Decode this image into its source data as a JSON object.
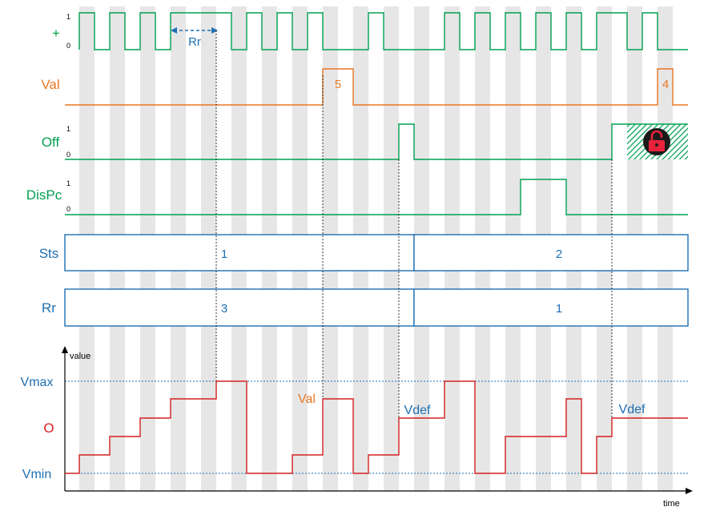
{
  "colors": {
    "green": "#00A050",
    "orange": "#E87722",
    "blue": "#1F6FB2",
    "red": "#D42020",
    "stripe": "#E6E6E6",
    "black": "#000000"
  },
  "signals": {
    "plus": {
      "label": "+",
      "hi": "1",
      "lo": "0"
    },
    "val": {
      "label": "Val",
      "pulse1": "5",
      "pulse2": "4"
    },
    "off": {
      "label": "Off",
      "hi": "1",
      "lo": "0",
      "icon": "lock-icon"
    },
    "dispc": {
      "label": "DisPc",
      "hi": "1",
      "lo": "0"
    }
  },
  "buses": {
    "sts": {
      "label": "Sts",
      "values": [
        "1",
        "2"
      ]
    },
    "rr": {
      "label": "Rr",
      "values": [
        "3",
        "1"
      ]
    }
  },
  "rr_arrow": {
    "label": "Rr"
  },
  "output": {
    "label": "O",
    "vmax": "Vmax",
    "vmin": "Vmin",
    "y_axis": "value",
    "x_axis": "time",
    "annotations": {
      "val": "Val",
      "vdef1": "Vdef",
      "vdef2": "Vdef"
    }
  }
}
